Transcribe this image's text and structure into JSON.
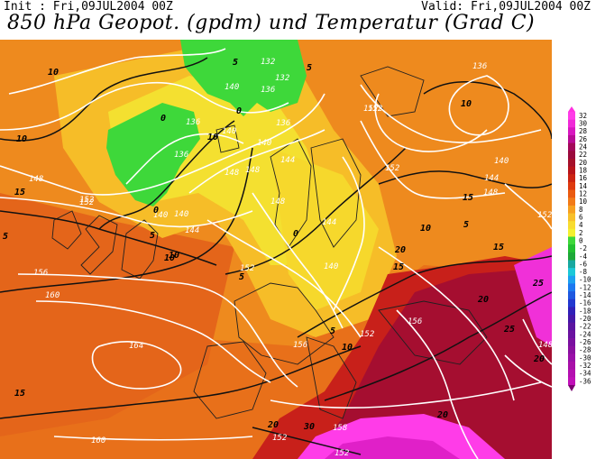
{
  "header": {
    "init": "Init : Fri,09JUL2004 00Z",
    "valid": "Valid: Fri,09JUL2004 00Z",
    "title": "850 hPa Geopot. (gpdm) und Temperatur (Grad C)"
  },
  "geopotential_labels": [
    "132",
    "132",
    "136",
    "140",
    "136",
    "140",
    "136",
    "140",
    "140",
    "136",
    "148",
    "148",
    "152",
    "156",
    "160",
    "164",
    "160",
    "152",
    "148",
    "144",
    "140",
    "152",
    "144",
    "148",
    "144",
    "140",
    "152",
    "156",
    "152",
    "156",
    "152",
    "136",
    "152",
    "140",
    "144",
    "148",
    "152",
    "152",
    "148",
    "158",
    "152"
  ],
  "temperature_labels": [
    "10",
    "10",
    "15",
    "5",
    "0",
    "5",
    "0",
    "10",
    "5",
    "10",
    "0",
    "5",
    "10",
    "15",
    "10",
    "5",
    "10",
    "15",
    "20",
    "20",
    "25",
    "25",
    "20",
    "30",
    "5",
    "0",
    "10",
    "15",
    "20",
    "20",
    "15",
    "5"
  ],
  "color_scale": {
    "labels": [
      "32",
      "30",
      "28",
      "26",
      "24",
      "22",
      "20",
      "18",
      "16",
      "14",
      "12",
      "10",
      "8",
      "6",
      "4",
      "2",
      "0",
      "-2",
      "-4",
      "-6",
      "-8",
      "-10",
      "-12",
      "-14",
      "-16",
      "-18",
      "-20",
      "-22",
      "-24",
      "-26",
      "-28",
      "-30",
      "-32",
      "-34",
      "-36"
    ],
    "colors": [
      "#ff3ce8",
      "#f02ad8",
      "#d817c0",
      "#b80c95",
      "#a3085a",
      "#9a0a3c",
      "#a5102a",
      "#b8141a",
      "#cc2412",
      "#de3a0f",
      "#ea5a10",
      "#f27a18",
      "#f7a020",
      "#f8c02a",
      "#f8dc30",
      "#f4f030",
      "#3ed83a",
      "#22c030",
      "#1ea838",
      "#18a8a0",
      "#1cc8d8",
      "#1ca0f0",
      "#1c78f0",
      "#1e58e0",
      "#2238d0",
      "#3020b8",
      "#4418a8",
      "#5a14a0",
      "#6a12a0",
      "#7a10a0",
      "#8a10a0",
      "#9a10a8",
      "#a810a8",
      "#b410b0",
      "#c010b8"
    ],
    "top_color": "#ff30e0",
    "bottom_color": "#7a0070"
  }
}
